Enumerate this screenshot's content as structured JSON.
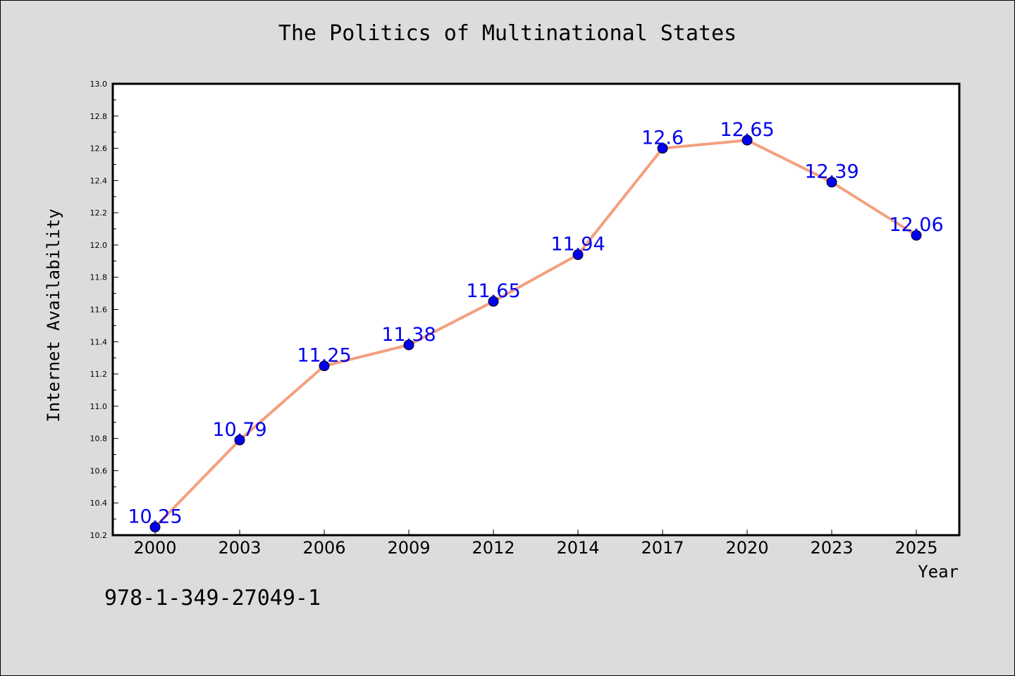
{
  "chart_data": {
    "type": "line",
    "title": "The Politics of Multinational States",
    "xlabel": "Year",
    "ylabel": "Internet Availability",
    "categories": [
      "2000",
      "2003",
      "2006",
      "2009",
      "2012",
      "2014",
      "2017",
      "2020",
      "2023",
      "2025"
    ],
    "series": [
      {
        "values": [
          10.25,
          10.79,
          11.25,
          11.38,
          11.65,
          11.94,
          12.6,
          12.65,
          12.39,
          12.06
        ],
        "labels": [
          "10.25",
          "10.79",
          "11.25",
          "11.38",
          "11.65",
          "11.94",
          "12.6",
          "12.65",
          "12.39",
          "12.06"
        ],
        "line_color": "#f4a07e",
        "marker_color": "#0000ee"
      }
    ],
    "ylim": [
      10.2,
      13.0
    ],
    "yticks": [
      "10.2",
      "10.4",
      "10.6",
      "10.8",
      "11.0",
      "11.2",
      "11.4",
      "11.6",
      "11.8",
      "12.0",
      "12.2",
      "12.4",
      "12.6",
      "12.8",
      "13.0"
    ],
    "grid": false,
    "legend": "none"
  },
  "footer": {
    "isbn": "978-1-349-27049-1"
  }
}
